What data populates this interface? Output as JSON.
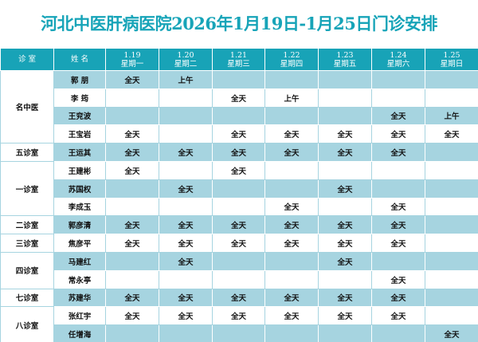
{
  "title": "河北中医肝病医院2026年1月19日-1月25日门诊安排",
  "header": {
    "room": "诊  室",
    "name": "姓  名",
    "days": [
      {
        "date": "1.19",
        "weekday": "星期一"
      },
      {
        "date": "1.20",
        "weekday": "星期二"
      },
      {
        "date": "1.21",
        "weekday": "星期三"
      },
      {
        "date": "1.22",
        "weekday": "星期四"
      },
      {
        "date": "1.23",
        "weekday": "星期五"
      },
      {
        "date": "1.24",
        "weekday": "星期六"
      },
      {
        "date": "1.25",
        "weekday": "星期日"
      }
    ]
  },
  "rows": [
    {
      "room": "名中医",
      "doctor": "郭  朋",
      "slots": [
        "全天",
        "上午",
        "",
        "",
        "",
        "",
        ""
      ]
    },
    {
      "room": "",
      "doctor": "李  筠",
      "slots": [
        "",
        "",
        "全天",
        "上午",
        "",
        "",
        ""
      ]
    },
    {
      "room": "",
      "doctor": "王兖波",
      "slots": [
        "",
        "",
        "",
        "",
        "",
        "全天",
        "上午"
      ]
    },
    {
      "room": "",
      "doctor": "王宝岩",
      "slots": [
        "全天",
        "",
        "全天",
        "全天",
        "全天",
        "全天",
        "全天"
      ]
    },
    {
      "room": "五诊室",
      "doctor": "王运其",
      "slots": [
        "全天",
        "全天",
        "全天",
        "全天",
        "全天",
        "全天",
        ""
      ]
    },
    {
      "room": "一诊室",
      "doctor": "王建彬",
      "slots": [
        "全天",
        "",
        "全天",
        "",
        "",
        "",
        ""
      ]
    },
    {
      "room": "",
      "doctor": "苏国权",
      "slots": [
        "",
        "全天",
        "",
        "",
        "全天",
        "",
        ""
      ]
    },
    {
      "room": "",
      "doctor": "李成玉",
      "slots": [
        "",
        "",
        "",
        "全天",
        "",
        "全天",
        ""
      ]
    },
    {
      "room": "二诊室",
      "doctor": "郭彦清",
      "slots": [
        "全天",
        "全天",
        "全天",
        "全天",
        "全天",
        "全天",
        ""
      ]
    },
    {
      "room": "三诊室",
      "doctor": "焦彦平",
      "slots": [
        "全天",
        "全天",
        "全天",
        "全天",
        "全天",
        "全天",
        ""
      ]
    },
    {
      "room": "四诊室",
      "doctor": "马建红",
      "slots": [
        "",
        "全天",
        "",
        "",
        "全天",
        "",
        ""
      ]
    },
    {
      "room": "",
      "doctor": "常永亭",
      "slots": [
        "",
        "",
        "",
        "",
        "",
        "全天",
        ""
      ]
    },
    {
      "room": "七诊室",
      "doctor": "苏建华",
      "slots": [
        "全天",
        "全天",
        "全天",
        "全天",
        "全天",
        "全天",
        ""
      ]
    },
    {
      "room": "八诊室",
      "doctor": "张红宇",
      "slots": [
        "全天",
        "全天",
        "全天",
        "全天",
        "全天",
        "全天",
        ""
      ]
    },
    {
      "room": "",
      "doctor": "任增海",
      "slots": [
        "",
        "",
        "",
        "",
        "",
        "",
        "全天"
      ]
    }
  ]
}
